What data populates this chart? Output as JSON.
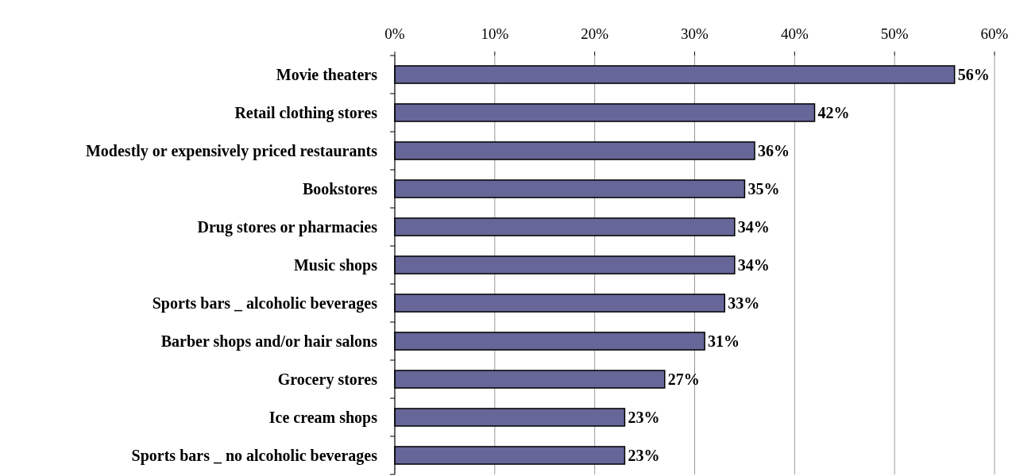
{
  "chart_data": {
    "type": "bar",
    "orientation": "horizontal",
    "categories": [
      "Movie theaters",
      "Retail clothing stores",
      "Modestly or expensively priced restaurants",
      "Bookstores",
      "Drug stores or pharmacies",
      "Music shops",
      "Sports bars _ alcoholic beverages",
      "Barber shops and/or hair salons",
      "Grocery stores",
      "Ice cream shops",
      "Sports bars _ no alcoholic beverages"
    ],
    "values": [
      56,
      42,
      36,
      35,
      34,
      34,
      33,
      31,
      27,
      23,
      23
    ],
    "value_labels": [
      "56%",
      "42%",
      "36%",
      "35%",
      "34%",
      "34%",
      "33%",
      "31%",
      "27%",
      "23%",
      "23%"
    ],
    "color": "#666699",
    "xlim": [
      0,
      60
    ],
    "xticks": [
      {
        "value": 0,
        "label": "0%"
      },
      {
        "value": 10,
        "label": "10%"
      },
      {
        "value": 20,
        "label": "20%"
      },
      {
        "value": 30,
        "label": "30%"
      },
      {
        "value": 40,
        "label": "40%"
      },
      {
        "value": 50,
        "label": "50%"
      },
      {
        "value": 60,
        "label": "60%"
      }
    ],
    "grid": "x"
  }
}
